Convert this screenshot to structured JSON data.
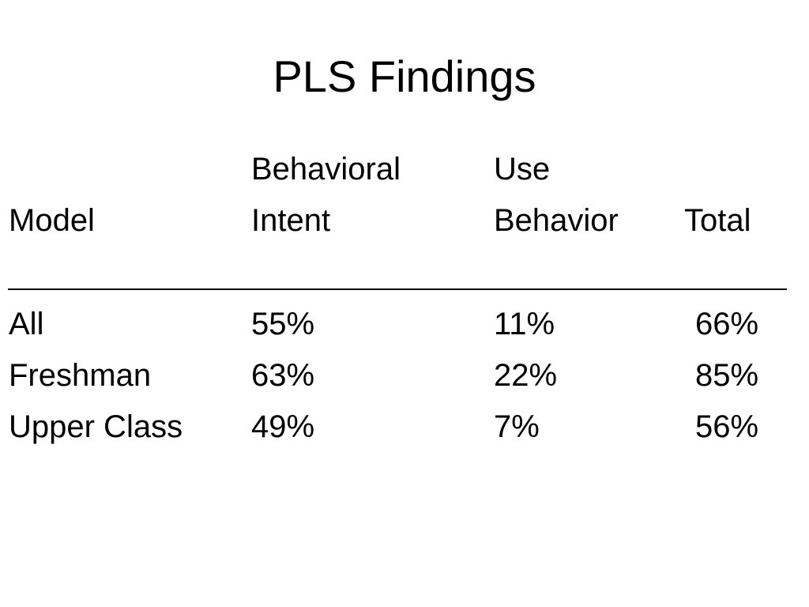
{
  "slide": {
    "title": "PLS Findings"
  },
  "table": {
    "header_top": [
      "",
      "Behavioral",
      "Use",
      ""
    ],
    "header_bottom": [
      "Model",
      "Intent",
      "Behavior",
      "Total"
    ],
    "rows": [
      {
        "model": "All",
        "intent": "55%",
        "behavior": "11%",
        "total": "66%"
      },
      {
        "model": "Freshman",
        "intent": "63%",
        "behavior": "22%",
        "total": "85%"
      },
      {
        "model": "Upper Class",
        "intent": "49%",
        "behavior": "7%",
        "total": "56%"
      }
    ]
  }
}
